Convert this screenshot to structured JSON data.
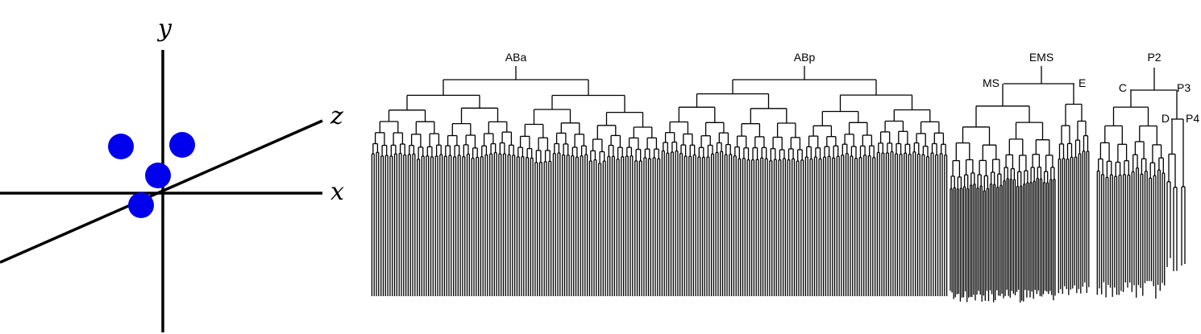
{
  "axes_diagram": {
    "labels": {
      "x": "x",
      "y": "y",
      "z": "z"
    },
    "point_color": "#0000ee",
    "axis_color": "#000000",
    "point_count": 4
  },
  "lineage_tree": {
    "line_color": "#000000",
    "labels": {
      "aba": "ABa",
      "abp": "ABp",
      "ems": "EMS",
      "ms": "MS",
      "e": "E",
      "p2": "P2",
      "c": "C",
      "p3": "P3",
      "d": "D",
      "p4": "P4"
    }
  }
}
